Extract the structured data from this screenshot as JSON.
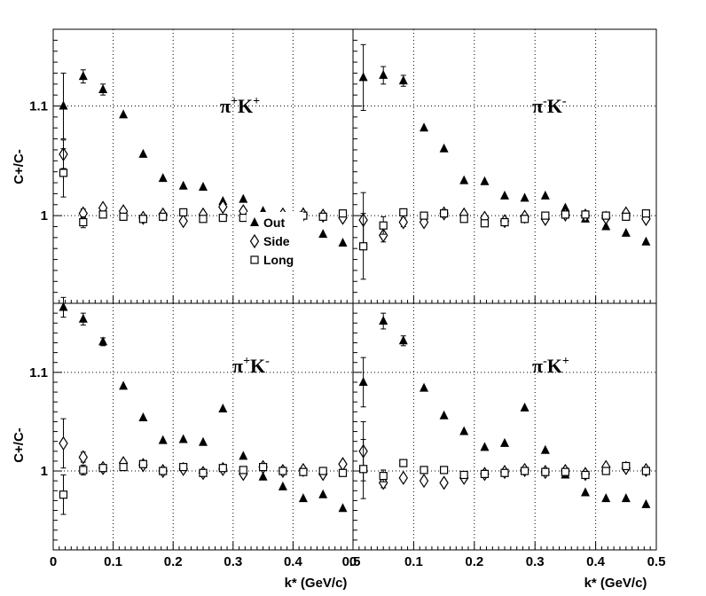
{
  "figure": {
    "ylabel": "C+/C-",
    "xlabel": "k* (GeV/c)",
    "legend": [
      "Out",
      "Side",
      "Long"
    ]
  },
  "chart_data": [
    {
      "type": "scatter",
      "panel_label": {
        "base1": "π",
        "sup1": "+",
        "base2": "K",
        "sup2": "+"
      },
      "xlim": [
        0,
        0.5
      ],
      "ylim": [
        0.92,
        1.17
      ],
      "xticks": [
        "0",
        "0.1",
        "0.2",
        "0.3",
        "0.4",
        "0.5"
      ],
      "yticks": [
        "1",
        "1.1"
      ],
      "grid": true,
      "legend_position": "middle-right",
      "x": [
        0.017,
        0.05,
        0.083,
        0.117,
        0.15,
        0.183,
        0.217,
        0.25,
        0.283,
        0.317,
        0.35,
        0.383,
        0.417,
        0.45,
        0.483
      ],
      "series": [
        {
          "name": "Out",
          "marker": "triangle",
          "values": [
            1.1,
            1.127,
            1.115,
            1.092,
            1.056,
            1.034,
            1.027,
            1.026,
            1.013,
            1.015,
            1.004,
            1.002,
            1.003,
            0.983,
            0.975
          ],
          "errors": [
            0.03,
            0.006,
            0.005,
            0.003,
            0.002,
            0.002,
            0.002,
            0.002,
            0.002,
            0.002,
            0.002,
            0.002,
            0.002,
            0.002,
            0.002
          ]
        },
        {
          "name": "Side",
          "marker": "diamond",
          "values": [
            1.056,
            1.002,
            1.007,
            1.004,
            0.998,
            1.001,
            0.995,
            1.001,
            1.008,
            1.004,
            0.999,
            1.001,
            1.001,
            1.0,
            0.998
          ],
          "errors": [
            0.013,
            0.004,
            0.003,
            0.002,
            0.002,
            0.002,
            0.002,
            0.002,
            0.002,
            0.002,
            0.002,
            0.002,
            0.002,
            0.002,
            0.002
          ]
        },
        {
          "name": "Long",
          "marker": "square",
          "values": [
            1.039,
            0.994,
            1.001,
            0.999,
            0.997,
            0.999,
            1.003,
            0.997,
            0.998,
            0.998,
            0.999,
            0.999,
            1.0,
            0.999,
            1.002
          ],
          "errors": [
            0.022,
            0.005,
            0.003,
            0.002,
            0.002,
            0.002,
            0.002,
            0.002,
            0.002,
            0.002,
            0.002,
            0.002,
            0.002,
            0.002,
            0.002
          ]
        }
      ]
    },
    {
      "type": "scatter",
      "panel_label": {
        "base1": "π",
        "sup1": "-",
        "base2": "K",
        "sup2": "-"
      },
      "xlim": [
        0,
        0.5
      ],
      "ylim": [
        0.92,
        1.17
      ],
      "xticks": [
        "0",
        "0.1",
        "0.2",
        "0.3",
        "0.4",
        "0.5"
      ],
      "yticks": [
        "1",
        "1.1"
      ],
      "grid": true,
      "x": [
        0.017,
        0.05,
        0.083,
        0.117,
        0.15,
        0.183,
        0.217,
        0.25,
        0.283,
        0.317,
        0.35,
        0.383,
        0.417,
        0.45,
        0.483
      ],
      "series": [
        {
          "name": "Out",
          "marker": "triangle",
          "values": [
            1.126,
            1.128,
            1.123,
            1.08,
            1.061,
            1.032,
            1.031,
            1.018,
            1.016,
            1.018,
            1.007,
            0.997,
            0.99,
            0.984,
            0.976
          ],
          "errors": [
            0.03,
            0.008,
            0.005,
            0.003,
            0.002,
            0.002,
            0.002,
            0.002,
            0.002,
            0.002,
            0.002,
            0.002,
            0.002,
            0.002,
            0.002
          ]
        },
        {
          "name": "Side",
          "marker": "diamond",
          "values": [
            0.996,
            0.982,
            0.994,
            0.994,
            1.002,
            1.001,
            0.998,
            0.995,
            0.999,
            0.997,
            1.001,
            1.0,
            0.998,
            1.002,
            0.997
          ],
          "errors": [
            0.025,
            0.006,
            0.004,
            0.003,
            0.002,
            0.002,
            0.002,
            0.002,
            0.002,
            0.002,
            0.002,
            0.002,
            0.002,
            0.002,
            0.002
          ]
        },
        {
          "name": "Long",
          "marker": "square",
          "values": [
            0.972,
            0.991,
            1.003,
            1.0,
            1.002,
            0.997,
            0.993,
            0.994,
            0.997,
            1.0,
            1.001,
            1.001,
            1.0,
            0.999,
            1.002
          ],
          "errors": [
            0.03,
            0.008,
            0.003,
            0.002,
            0.002,
            0.002,
            0.002,
            0.002,
            0.002,
            0.002,
            0.002,
            0.002,
            0.002,
            0.002,
            0.002
          ]
        }
      ]
    },
    {
      "type": "scatter",
      "panel_label": {
        "base1": "π",
        "sup1": "+",
        "base2": "K",
        "sup2": "-"
      },
      "xlim": [
        0,
        0.5
      ],
      "ylim": [
        0.92,
        1.17
      ],
      "xticks": [
        "0",
        "0.1",
        "0.2",
        "0.3",
        "0.4",
        "0.5"
      ],
      "yticks": [
        "1",
        "1.1"
      ],
      "grid": true,
      "x": [
        0.017,
        0.05,
        0.083,
        0.117,
        0.15,
        0.183,
        0.217,
        0.25,
        0.283,
        0.317,
        0.35,
        0.383,
        0.417,
        0.45,
        0.483
      ],
      "series": [
        {
          "name": "Out",
          "marker": "triangle",
          "values": [
            1.166,
            1.154,
            1.131,
            1.086,
            1.054,
            1.031,
            1.032,
            1.029,
            1.063,
            1.015,
            0.994,
            0.984,
            0.972,
            0.976,
            0.962
          ],
          "errors": [
            0.01,
            0.006,
            0.004,
            0.003,
            0.002,
            0.002,
            0.002,
            0.002,
            0.002,
            0.002,
            0.002,
            0.002,
            0.002,
            0.002,
            0.002
          ]
        },
        {
          "name": "Side",
          "marker": "diamond",
          "values": [
            1.028,
            1.014,
            1.003,
            1.008,
            1.006,
            1.0,
            1.002,
            0.998,
            1.002,
            0.997,
            1.004,
            1.0,
            1.001,
            0.997,
            1.007
          ],
          "errors": [
            0.025,
            0.005,
            0.003,
            0.002,
            0.002,
            0.002,
            0.002,
            0.002,
            0.002,
            0.002,
            0.002,
            0.002,
            0.002,
            0.002,
            0.002
          ]
        },
        {
          "name": "Long",
          "marker": "square",
          "values": [
            0.976,
            1.001,
            1.003,
            1.004,
            1.007,
            1.0,
            1.004,
            0.998,
            1.003,
            1.001,
            1.004,
            1.0,
            0.999,
            1.0,
            0.998
          ],
          "errors": [
            0.02,
            0.005,
            0.003,
            0.002,
            0.002,
            0.002,
            0.002,
            0.002,
            0.002,
            0.002,
            0.002,
            0.002,
            0.002,
            0.002,
            0.002
          ]
        }
      ]
    },
    {
      "type": "scatter",
      "panel_label": {
        "base1": "π",
        "sup1": "-",
        "base2": "K",
        "sup2": "+"
      },
      "xlim": [
        0,
        0.5
      ],
      "ylim": [
        0.92,
        1.17
      ],
      "xticks": [
        "0",
        "0.1",
        "0.2",
        "0.3",
        "0.4",
        "0.5"
      ],
      "yticks": [
        "1",
        "1.1"
      ],
      "grid": true,
      "x": [
        0.017,
        0.05,
        0.083,
        0.117,
        0.15,
        0.183,
        0.217,
        0.25,
        0.283,
        0.317,
        0.35,
        0.383,
        0.417,
        0.45,
        0.483
      ],
      "series": [
        {
          "name": "Out",
          "marker": "triangle",
          "values": [
            1.09,
            1.152,
            1.132,
            1.084,
            1.056,
            1.04,
            1.024,
            1.028,
            1.064,
            1.021,
            0.996,
            0.978,
            0.972,
            0.972,
            0.966
          ],
          "errors": [
            0.025,
            0.008,
            0.005,
            0.003,
            0.002,
            0.002,
            0.002,
            0.002,
            0.002,
            0.002,
            0.002,
            0.002,
            0.002,
            0.002,
            0.002
          ]
        },
        {
          "name": "Side",
          "marker": "diamond",
          "values": [
            1.02,
            0.988,
            0.993,
            0.99,
            0.988,
            0.993,
            0.997,
            0.999,
            1.001,
            0.999,
            1.0,
            0.997,
            1.004,
            1.003,
            1.001
          ],
          "errors": [
            0.03,
            0.005,
            0.003,
            0.002,
            0.002,
            0.002,
            0.002,
            0.002,
            0.002,
            0.002,
            0.002,
            0.002,
            0.002,
            0.002,
            0.002
          ]
        },
        {
          "name": "Long",
          "marker": "square",
          "values": [
            1.002,
            0.995,
            1.008,
            1.001,
            1.001,
            0.996,
            0.997,
            0.998,
            1.0,
            0.999,
            0.999,
            0.996,
            1.0,
            1.005,
            1.0
          ],
          "errors": [
            0.03,
            0.006,
            0.003,
            0.002,
            0.002,
            0.002,
            0.002,
            0.002,
            0.002,
            0.002,
            0.002,
            0.002,
            0.002,
            0.002,
            0.002
          ]
        }
      ]
    }
  ]
}
